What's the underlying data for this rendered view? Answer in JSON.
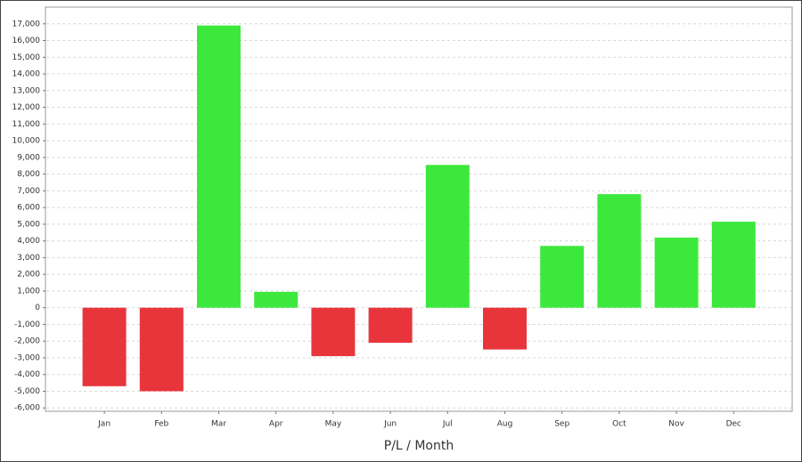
{
  "chart_data": {
    "type": "bar",
    "x_label": "P/L / Month",
    "categories": [
      "Jan",
      "Feb",
      "Mar",
      "Apr",
      "May",
      "Jun",
      "Jul",
      "Aug",
      "Sep",
      "Oct",
      "Nov",
      "Dec"
    ],
    "values": [
      -4700,
      -5000,
      16900,
      950,
      -2900,
      -2100,
      8550,
      -2500,
      3700,
      6800,
      4200,
      5150
    ],
    "colors": [
      "#e8353b",
      "#e8353b",
      "#3de83d",
      "#3de83d",
      "#e8353b",
      "#e8353b",
      "#3de83d",
      "#e8353b",
      "#3de83d",
      "#3de83d",
      "#3de83d",
      "#3de83d"
    ],
    "ylim": [
      -6200,
      18000
    ],
    "yticks": [
      {
        "value": -6000,
        "label": "-6,000"
      },
      {
        "value": -5000,
        "label": "-5,000"
      },
      {
        "value": -4000,
        "label": "-4,000"
      },
      {
        "value": -3000,
        "label": "-3,000"
      },
      {
        "value": -2000,
        "label": "-2,000"
      },
      {
        "value": -1000,
        "label": "-1,000"
      },
      0,
      {
        "value": 1000,
        "label": "1,000"
      },
      {
        "value": 2000,
        "label": "2,000"
      },
      {
        "value": 3000,
        "label": "3,000"
      },
      {
        "value": 4000,
        "label": "4,000"
      },
      {
        "value": 5000,
        "label": "5,000"
      },
      {
        "value": 6000,
        "label": "6,000"
      },
      {
        "value": 7000,
        "label": "7,000"
      },
      {
        "value": 8000,
        "label": "8,000"
      },
      {
        "value": 9000,
        "label": "9,000"
      },
      {
        "value": 10000,
        "label": "10,000"
      },
      {
        "value": 11000,
        "label": "11,000"
      },
      {
        "value": 12000,
        "label": "12,000"
      },
      {
        "value": 13000,
        "label": "13,000"
      },
      {
        "value": 14000,
        "label": "14,000"
      },
      {
        "value": 15000,
        "label": "15,000"
      },
      {
        "value": 16000,
        "label": "16,000"
      },
      {
        "value": 17000,
        "label": "17,000"
      }
    ],
    "grid": true
  }
}
